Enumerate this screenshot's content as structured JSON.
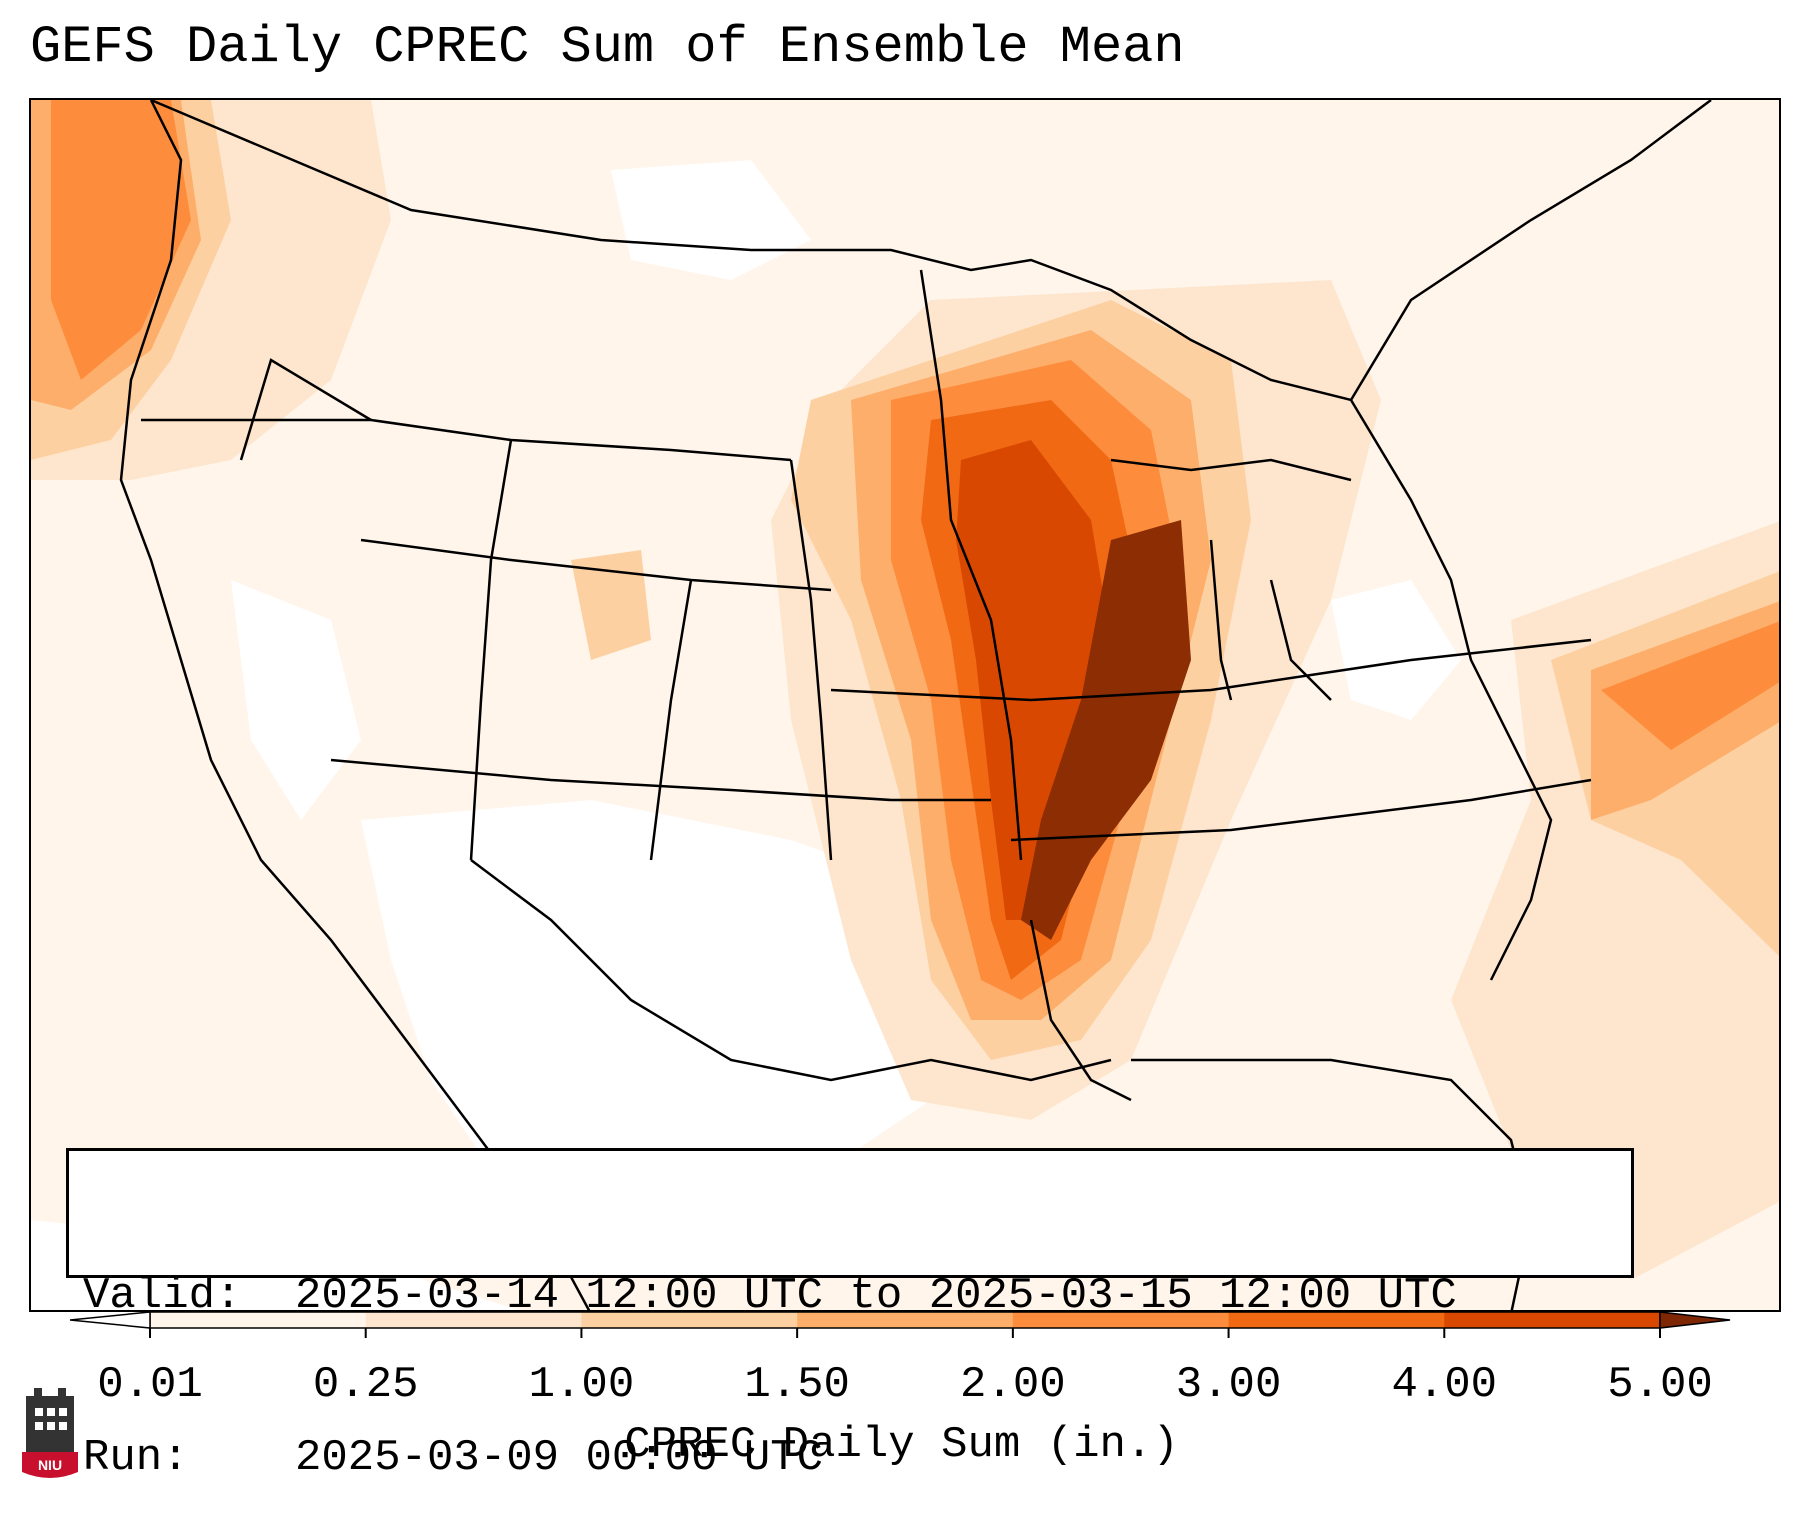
{
  "title": "GEFS Daily CPREC Sum of Ensemble Mean",
  "info": {
    "valid_key": "Valid:",
    "valid_value": "2025-03-14 12:00 UTC to 2025-03-15 12:00 UTC",
    "run_key": "Run:",
    "run_value": "2025-03-09 00:00 UTC"
  },
  "colorbar": {
    "label": "CPREC Daily Sum (in.)",
    "ticks": [
      "0.01",
      "0.25",
      "1.00",
      "1.50",
      "2.00",
      "3.00",
      "4.00",
      "5.00"
    ],
    "colors": [
      "#fff5eb",
      "#fee6ce",
      "#fdd0a2",
      "#fdae6b",
      "#fd8d3c",
      "#f16913",
      "#d94801",
      "#8c2d04"
    ],
    "under_color": "#ffffff",
    "over_color": "#7f2704"
  },
  "logo": {
    "text": "NIU",
    "color": "#c8102e"
  },
  "colors": {
    "frame": "#000000",
    "borders": "#000000"
  }
}
